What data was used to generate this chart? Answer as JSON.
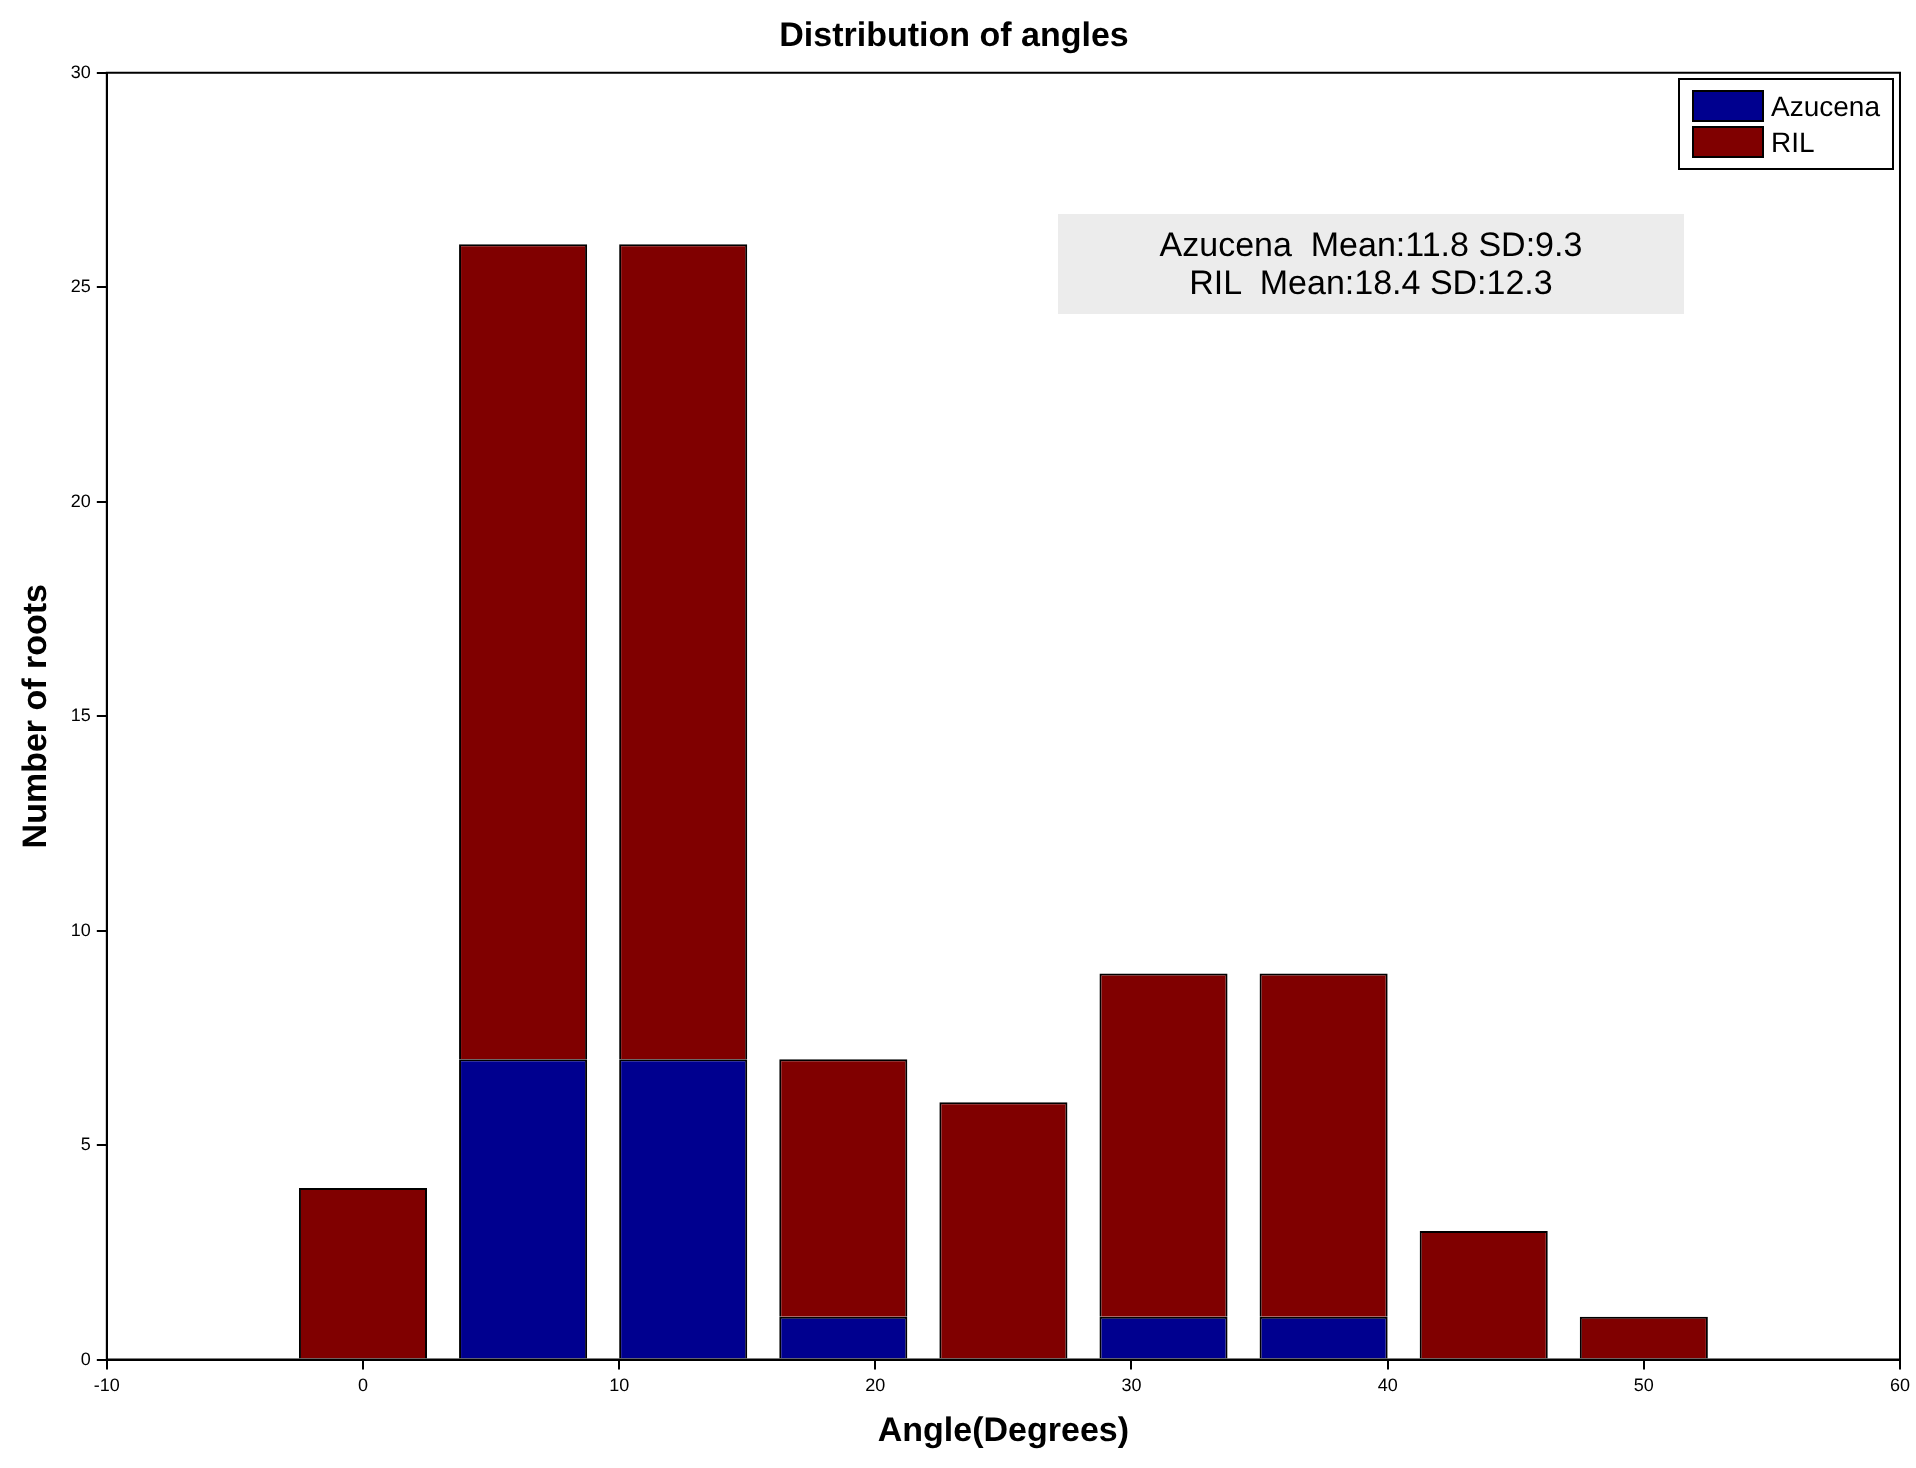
{
  "chart_data": {
    "type": "bar",
    "title": "Distribution of angles",
    "xlabel": "Angle(Degrees)",
    "ylabel": "Number of roots",
    "x": [
      0,
      6.25,
      12.5,
      18.75,
      25,
      31.25,
      37.5,
      43.75,
      50
    ],
    "series": [
      {
        "name": "Azucena",
        "color": "#00008f",
        "values": [
          0,
          7,
          7,
          1,
          0,
          1,
          1,
          0,
          0
        ]
      },
      {
        "name": "RIL",
        "color": "#800000",
        "values": [
          4,
          19,
          19,
          6,
          6,
          8,
          8,
          3,
          1
        ]
      }
    ],
    "stacked": true,
    "xlim": [
      -10,
      60
    ],
    "xticks": [
      -10,
      0,
      10,
      20,
      30,
      40,
      50,
      60
    ],
    "ylim": [
      0,
      30
    ],
    "yticks": [
      0,
      5,
      10,
      15,
      20,
      25,
      30
    ],
    "grid": false,
    "legend": "top right",
    "annotations": [
      "Azucena  Mean:11.8 SD:9.3",
      "RIL  Mean:18.4 SD:12.3"
    ]
  }
}
